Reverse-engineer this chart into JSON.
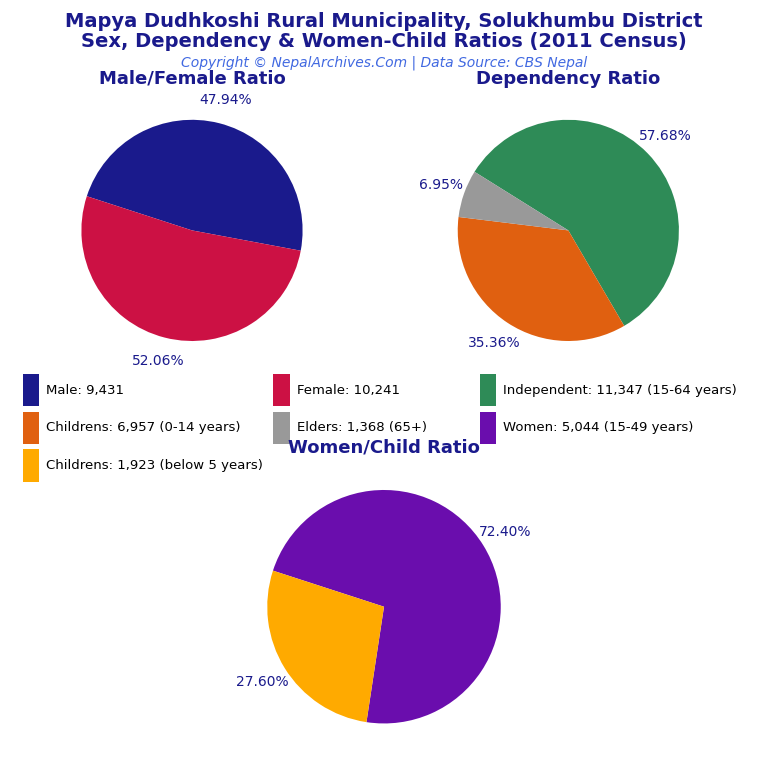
{
  "title_line1": "Mapya Dudhkoshi Rural Municipality, Solukhumbu District",
  "title_line2": "Sex, Dependency & Women-Child Ratios (2011 Census)",
  "copyright": "Copyright © NepalArchives.Com | Data Source: CBS Nepal",
  "title_color": "#1a1a8c",
  "copyright_color": "#4169e1",
  "background_color": "#ffffff",
  "pie1_title": "Male/Female Ratio",
  "pie1_values": [
    47.94,
    52.06
  ],
  "pie1_colors": [
    "#1a1a8c",
    "#cc1144"
  ],
  "pie1_labels": [
    "47.94%",
    "52.06%"
  ],
  "pie1_startangle": 162,
  "pie1_counterclock": false,
  "pie2_title": "Dependency Ratio",
  "pie2_values": [
    57.68,
    35.36,
    6.95
  ],
  "pie2_colors": [
    "#2e8b57",
    "#e06010",
    "#999999"
  ],
  "pie2_labels": [
    "57.68%",
    "35.36%",
    "6.95%"
  ],
  "pie2_startangle": 148,
  "pie2_counterclock": false,
  "pie3_title": "Women/Child Ratio",
  "pie3_values": [
    72.4,
    27.6
  ],
  "pie3_colors": [
    "#6a0dad",
    "#ffaa00"
  ],
  "pie3_labels": [
    "72.40%",
    "27.60%"
  ],
  "pie3_startangle": 162,
  "pie3_counterclock": false,
  "legend_items": [
    {
      "label": "Male: 9,431",
      "color": "#1a1a8c"
    },
    {
      "label": "Female: 10,241",
      "color": "#cc1144"
    },
    {
      "label": "Independent: 11,347 (15-64 years)",
      "color": "#2e8b57"
    },
    {
      "label": "Childrens: 6,957 (0-14 years)",
      "color": "#e06010"
    },
    {
      "label": "Elders: 1,368 (65+)",
      "color": "#999999"
    },
    {
      "label": "Women: 5,044 (15-49 years)",
      "color": "#6a0dad"
    },
    {
      "label": "Childrens: 1,923 (below 5 years)",
      "color": "#ffaa00"
    }
  ],
  "label_fontsize": 10,
  "title_fontsize": 13,
  "main_title_fontsize": 14,
  "copyright_fontsize": 10,
  "legend_fontsize": 9.5
}
